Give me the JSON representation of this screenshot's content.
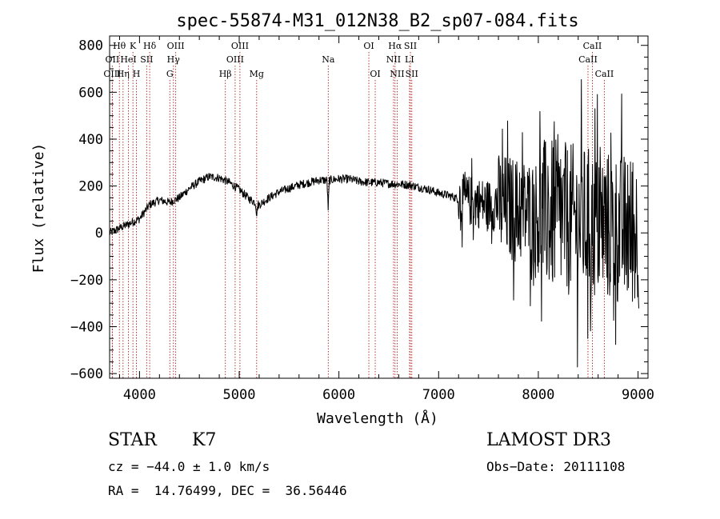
{
  "chart_data": {
    "type": "line",
    "title": "spec-55874-M31_012N38_B2_sp07-084.fits",
    "xlabel": "Wavelength (Å)",
    "ylabel": "Flux (relative)",
    "xlim": [
      3700,
      9100
    ],
    "ylim": [
      -620,
      840
    ],
    "xticks": [
      4000,
      5000,
      6000,
      7000,
      8000,
      9000
    ],
    "xtick_labels": [
      "4000",
      "5000",
      "6000",
      "7000",
      "8000",
      "9000"
    ],
    "yticks": [
      -600,
      -400,
      -200,
      0,
      200,
      400,
      600,
      800
    ],
    "ytick_labels": [
      "−600",
      "−400",
      "−200",
      "0",
      "200",
      "400",
      "600",
      "800"
    ],
    "line_color": "#000000",
    "marker_color": "#b22222",
    "spectrum_anchors": {
      "x": [
        3700,
        3800,
        3900,
        4000,
        4100,
        4200,
        4300,
        4400,
        4500,
        4600,
        4700,
        4800,
        4900,
        5000,
        5100,
        5200,
        5300,
        5400,
        5500,
        5600,
        5700,
        5800,
        5900,
        6000,
        6100,
        6200,
        6300,
        6400,
        6500,
        6600,
        6700,
        6800,
        6900,
        7000,
        7100,
        7200
      ],
      "y": [
        0,
        20,
        40,
        60,
        120,
        140,
        130,
        150,
        190,
        220,
        240,
        235,
        215,
        185,
        145,
        120,
        150,
        175,
        190,
        205,
        215,
        225,
        225,
        230,
        230,
        220,
        215,
        215,
        210,
        208,
        205,
        195,
        185,
        170,
        160,
        145
      ]
    },
    "noise_segments": [
      {
        "x_range": [
          3700,
          7200
        ],
        "amplitude": 18
      },
      {
        "x_range": [
          7200,
          7600
        ],
        "amplitude": 110
      },
      {
        "x_range": [
          7600,
          8000
        ],
        "amplitude": 230
      },
      {
        "x_range": [
          8000,
          9100
        ],
        "amplitude": 330
      }
    ],
    "absorption_features": [
      {
        "wavelength": 5892,
        "depth": 120
      },
      {
        "wavelength": 5175,
        "depth": 50
      }
    ],
    "spectral_lines": [
      {
        "label": "Hθ",
        "wavelength": 3798,
        "row": 1
      },
      {
        "label": "OII",
        "wavelength": 3727,
        "row": 2
      },
      {
        "label": "OIII",
        "wavelength": 3727,
        "row": 3
      },
      {
        "label": "K",
        "wavelength": 3934,
        "row": 1
      },
      {
        "label": "HeI",
        "wavelength": 3889,
        "row": 2
      },
      {
        "label": "Hη",
        "wavelength": 3835,
        "row": 3
      },
      {
        "label": "H",
        "wavelength": 3969,
        "row": 3
      },
      {
        "label": "Hδ",
        "wavelength": 4102,
        "row": 1
      },
      {
        "label": "SII",
        "wavelength": 4072,
        "row": 2
      },
      {
        "label": "OIII",
        "wavelength": 4363,
        "row": 1
      },
      {
        "label": "Hγ",
        "wavelength": 4340,
        "row": 2
      },
      {
        "label": "G",
        "wavelength": 4304,
        "row": 3
      },
      {
        "label": "Hβ",
        "wavelength": 4861,
        "row": 3
      },
      {
        "label": "OIII",
        "wavelength": 5007,
        "row": 1
      },
      {
        "label": "OIII",
        "wavelength": 4959,
        "row": 2
      },
      {
        "label": "Mg",
        "wavelength": 5175,
        "row": 3
      },
      {
        "label": "Na",
        "wavelength": 5893,
        "row": 2
      },
      {
        "label": "OI",
        "wavelength": 6300,
        "row": 1
      },
      {
        "label": "OI",
        "wavelength": 6364,
        "row": 3
      },
      {
        "label": "Hα",
        "wavelength": 6563,
        "row": 1
      },
      {
        "label": "NII",
        "wavelength": 6548,
        "row": 2
      },
      {
        "label": "NII",
        "wavelength": 6584,
        "row": 3
      },
      {
        "label": "SII",
        "wavelength": 6717,
        "row": 1
      },
      {
        "label": "LI",
        "wavelength": 6708,
        "row": 2
      },
      {
        "label": "SII",
        "wavelength": 6731,
        "row": 3
      },
      {
        "label": "CaII",
        "wavelength": 8542,
        "row": 1
      },
      {
        "label": "CaII",
        "wavelength": 8498,
        "row": 2
      },
      {
        "label": "CaII",
        "wavelength": 8662,
        "row": 3
      }
    ]
  },
  "info": {
    "class_label": "STAR",
    "subclass": "K7",
    "survey": "LAMOST DR3",
    "cz": "cz = −44.0 ± 1.0 km/s",
    "obs_date": "Obs−Date: 20111108",
    "coords": "RA =  14.76499, DEC =  36.56446"
  }
}
